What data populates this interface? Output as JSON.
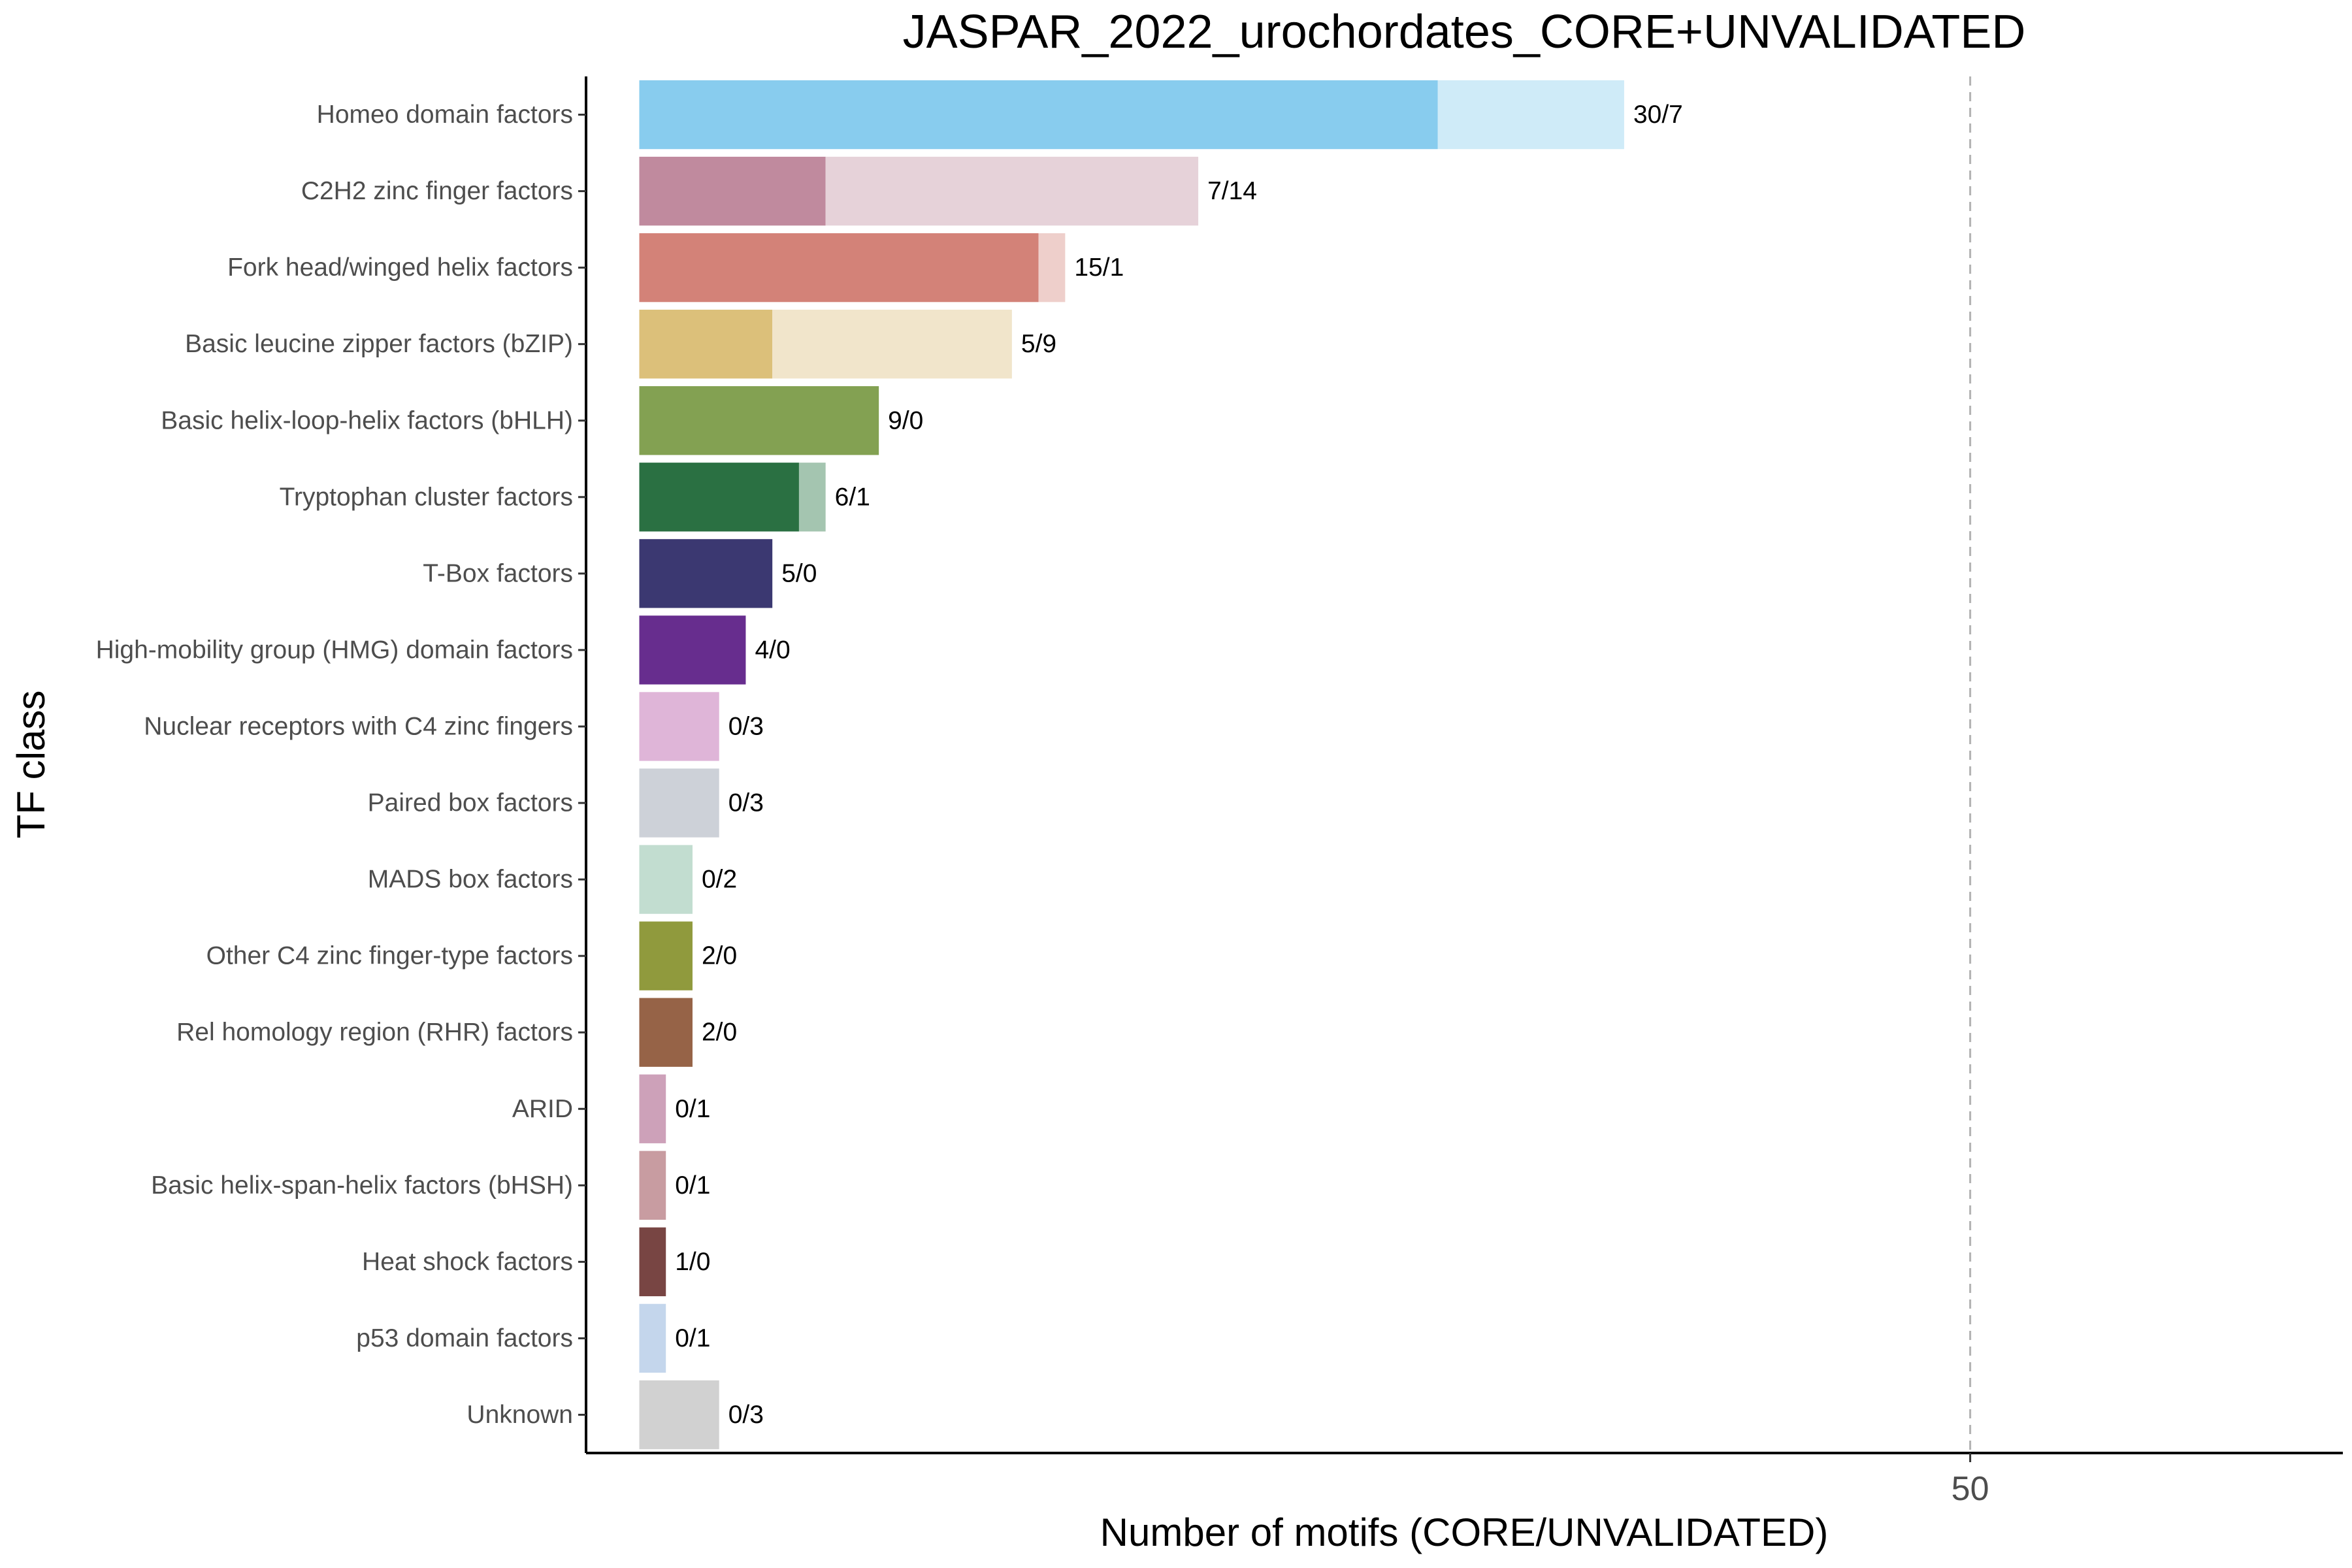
{
  "chart_data": {
    "type": "bar",
    "orientation": "horizontal",
    "stacked": true,
    "title": "JASPAR_2022_urochordates_CORE+UNVALIDATED",
    "xlabel": "Number of motifs (CORE/UNVALIDATED)",
    "ylabel": "TF class",
    "xlim": [
      -2,
      64
    ],
    "xticks": [
      50
    ],
    "reference_line": {
      "x": 50,
      "style": "dashed"
    },
    "grid": false,
    "legend": "none",
    "categories": [
      "Homeo domain factors",
      "C2H2 zinc finger factors",
      "Fork head/winged helix factors",
      "Basic leucine zipper factors (bZIP)",
      "Basic helix-loop-helix factors (bHLH)",
      "Tryptophan cluster factors",
      "T-Box factors",
      "High-mobility group (HMG) domain factors",
      "Nuclear receptors with C4 zinc fingers",
      "Paired box factors",
      "MADS box factors",
      "Other C4 zinc finger-type factors",
      "Rel homology region (RHR) factors",
      "ARID",
      "Basic helix-span-helix factors (bHSH)",
      "Heat shock factors",
      "p53 domain factors",
      "Unknown"
    ],
    "series": [
      {
        "name": "CORE",
        "values": [
          30,
          7,
          15,
          5,
          9,
          6,
          5,
          4,
          0,
          0,
          0,
          2,
          2,
          0,
          0,
          1,
          0,
          0
        ]
      },
      {
        "name": "UNVALIDATED",
        "values": [
          7,
          14,
          1,
          9,
          0,
          1,
          0,
          0,
          3,
          3,
          2,
          0,
          0,
          1,
          1,
          0,
          1,
          3
        ]
      }
    ],
    "data_labels": [
      "30/7",
      "7/14",
      "15/1",
      "5/9",
      "9/0",
      "6/1",
      "5/0",
      "4/0",
      "0/3",
      "0/3",
      "0/2",
      "2/0",
      "2/0",
      "0/1",
      "0/1",
      "1/0",
      "0/1",
      "0/3"
    ],
    "colors": {
      "core": [
        "#88ccee",
        "#c08a9e",
        "#d38278",
        "#dcc07a",
        "#83a152",
        "#2a7042",
        "#3b3871",
        "#672d8e",
        "#dfb5d8",
        "#cdd1d8",
        "#c2ddd0",
        "#909a3d",
        "#966347",
        "#cda1b9",
        "#c89ca1",
        "#784543",
        "#c4d6ec",
        "#d1d1d1"
      ],
      "unvalidated": [
        "#cfebf8",
        "#e6d2d9",
        "#eecfcb",
        "#f1e5cb",
        "#cddac0",
        "#a4c5b0",
        "#b5b4c8",
        "#c7b2d5",
        "#dfb5d8",
        "#cdd1d8",
        "#c2ddd0",
        "#d4d8bd",
        "#d9c7bd",
        "#cda1b9",
        "#c89ca1",
        "#c9b4b4",
        "#c4d6ec",
        "#d1d1d1"
      ]
    }
  }
}
